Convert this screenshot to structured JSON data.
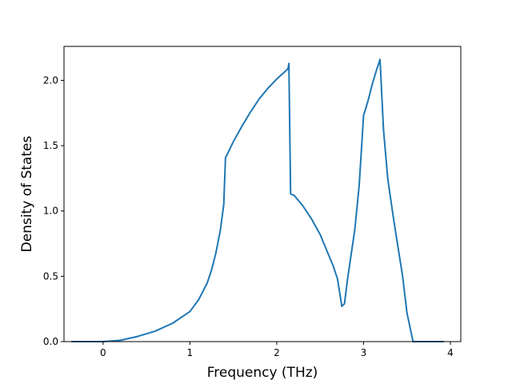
{
  "chart_data": {
    "type": "line",
    "title": "",
    "xlabel": "Frequency (THz)",
    "ylabel": "Density of States",
    "xlim": [
      -0.45,
      4.12
    ],
    "ylim": [
      0.0,
      2.26
    ],
    "xticks": [
      0,
      1,
      2,
      3,
      4
    ],
    "xtick_labels": [
      "0",
      "1",
      "2",
      "3",
      "4"
    ],
    "yticks": [
      0.0,
      0.5,
      1.0,
      1.5,
      2.0
    ],
    "ytick_labels": [
      "0.0",
      "0.5",
      "1.0",
      "1.5",
      "2.0"
    ],
    "grid": false,
    "legend": "none",
    "series": [
      {
        "color": "#1f77b4",
        "x": [
          -0.36,
          0.0,
          0.2,
          0.4,
          0.6,
          0.8,
          1.0,
          1.1,
          1.2,
          1.25,
          1.3,
          1.35,
          1.39,
          1.41,
          1.42,
          1.5,
          1.6,
          1.7,
          1.8,
          1.9,
          2.0,
          2.05,
          2.1,
          2.13,
          2.14,
          2.16,
          2.2,
          2.3,
          2.4,
          2.5,
          2.6,
          2.65,
          2.7,
          2.75,
          2.78,
          2.82,
          2.9,
          2.95,
          3.0,
          3.05,
          3.1,
          3.15,
          3.19,
          3.23,
          3.28,
          3.35,
          3.45,
          3.5,
          3.57,
          3.6,
          3.92
        ],
        "y": [
          0.0,
          0.0,
          0.01,
          0.04,
          0.08,
          0.14,
          0.23,
          0.32,
          0.45,
          0.55,
          0.68,
          0.85,
          1.05,
          1.41,
          1.42,
          1.53,
          1.65,
          1.76,
          1.86,
          1.94,
          2.01,
          2.04,
          2.07,
          2.09,
          2.13,
          1.13,
          1.12,
          1.04,
          0.94,
          0.82,
          0.66,
          0.58,
          0.48,
          0.27,
          0.29,
          0.5,
          0.86,
          1.2,
          1.73,
          1.84,
          1.97,
          2.08,
          2.16,
          1.62,
          1.24,
          0.92,
          0.5,
          0.22,
          0.0,
          0.0,
          0.0
        ]
      }
    ]
  }
}
